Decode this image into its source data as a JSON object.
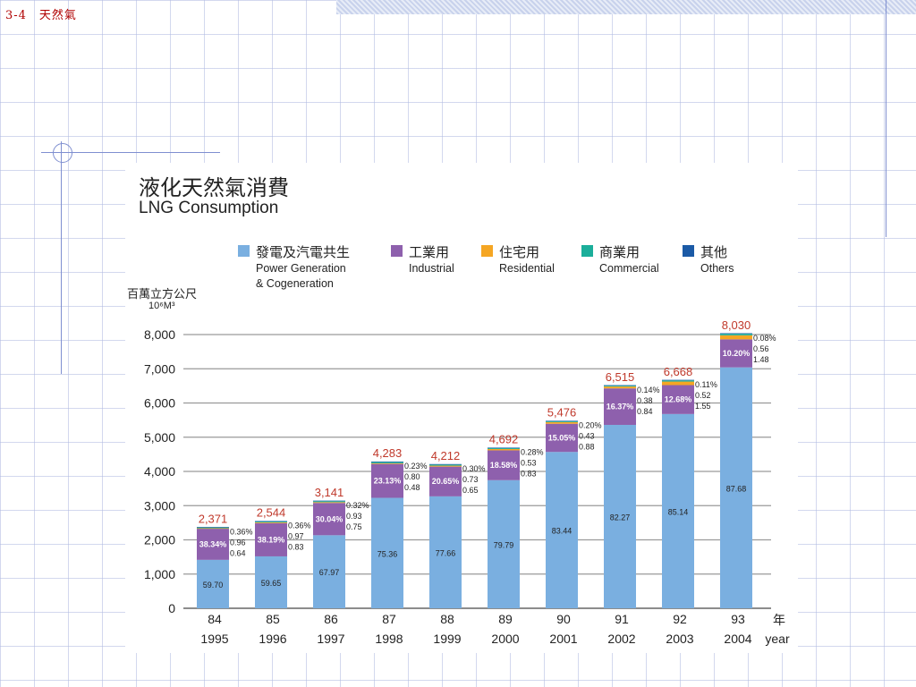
{
  "slide": {
    "title": "3-4　天然氣"
  },
  "chart_title_zh": "液化天然氣消費",
  "chart_title_en": "LNG Consumption",
  "unit": {
    "zh": "百萬立方公尺",
    "en": "10⁶M³"
  },
  "legend": [
    {
      "zh": "發電及汽電共生",
      "en": "Power Generation\n& Cogeneration",
      "color": "#7aafe0"
    },
    {
      "zh": "工業用",
      "en": "Industrial",
      "color": "#8e60ad"
    },
    {
      "zh": "住宅用",
      "en": "Residential",
      "color": "#f5a623"
    },
    {
      "zh": "商業用",
      "en": "Commercial",
      "color": "#1bae9a"
    },
    {
      "zh": "其他",
      "en": "Others",
      "color": "#1b5aa6"
    }
  ],
  "chart_data": {
    "type": "bar",
    "stacked": true,
    "title": "液化天然氣消費 LNG Consumption",
    "ylabel": "百萬立方公尺 10⁶M³",
    "xunit": {
      "zh": "年",
      "en": "year"
    },
    "ylim": [
      0,
      8000
    ],
    "yticks": [
      "0",
      "1,000",
      "2,000",
      "3,000",
      "4,000",
      "5,000",
      "6,000",
      "7,000",
      "8,000"
    ],
    "categories": [
      {
        "roc": "84",
        "ad": "1995"
      },
      {
        "roc": "85",
        "ad": "1996"
      },
      {
        "roc": "86",
        "ad": "1997"
      },
      {
        "roc": "87",
        "ad": "1998"
      },
      {
        "roc": "88",
        "ad": "1999"
      },
      {
        "roc": "89",
        "ad": "2000"
      },
      {
        "roc": "90",
        "ad": "2001"
      },
      {
        "roc": "91",
        "ad": "2002"
      },
      {
        "roc": "92",
        "ad": "2003"
      },
      {
        "roc": "93",
        "ad": "2004"
      }
    ],
    "totals": [
      2371,
      2544,
      3141,
      4283,
      4212,
      4692,
      5476,
      6515,
      6668,
      8030
    ],
    "total_labels": [
      "2,371",
      "2,544",
      "3,141",
      "4,283",
      "4,212",
      "4,692",
      "5,476",
      "6,515",
      "6,668",
      "8,030"
    ],
    "series_shares": [
      {
        "name": "發電及汽電共生",
        "labels": [
          "59.70",
          "59.65",
          "67.97",
          "75.36",
          "77.66",
          "79.79",
          "83.44",
          "82.27",
          "85.14",
          "87.68"
        ]
      },
      {
        "name": "工業用",
        "labels": [
          "38.34%",
          "38.19%",
          "30.04%",
          "23.13%",
          "20.65%",
          "18.58%",
          "15.05%",
          "16.37%",
          "12.68%",
          "10.20%"
        ]
      },
      {
        "name": "住宅用",
        "labels": [
          "0.64",
          "0.83",
          "0.75",
          "0.48",
          "0.65",
          "0.83",
          "0.88",
          "0.84",
          "1.55",
          "1.48"
        ]
      },
      {
        "name": "商業用",
        "labels": [
          "0.96",
          "0.97",
          "0.93",
          "0.80",
          "0.73",
          "0.53",
          "0.43",
          "0.38",
          "0.52",
          "0.56"
        ]
      },
      {
        "name": "其他",
        "labels": [
          "0.36%",
          "0.36%",
          "0.32%",
          "0.23%",
          "0.30%",
          "0.28%",
          "0.20%",
          "0.14%",
          "0.11%",
          "0.08%"
        ]
      }
    ],
    "series_values_pct": [
      [
        59.7,
        59.65,
        67.97,
        75.36,
        77.66,
        79.79,
        83.44,
        82.27,
        85.14,
        87.68
      ],
      [
        38.34,
        38.19,
        30.04,
        23.13,
        20.65,
        18.58,
        15.05,
        16.37,
        12.68,
        10.2
      ],
      [
        0.64,
        0.83,
        0.75,
        0.48,
        0.65,
        0.83,
        0.88,
        0.84,
        1.55,
        1.48
      ],
      [
        0.96,
        0.97,
        0.93,
        0.8,
        0.73,
        0.53,
        0.43,
        0.38,
        0.52,
        0.56
      ],
      [
        0.36,
        0.36,
        0.32,
        0.23,
        0.3,
        0.28,
        0.2,
        0.14,
        0.11,
        0.08
      ]
    ]
  }
}
